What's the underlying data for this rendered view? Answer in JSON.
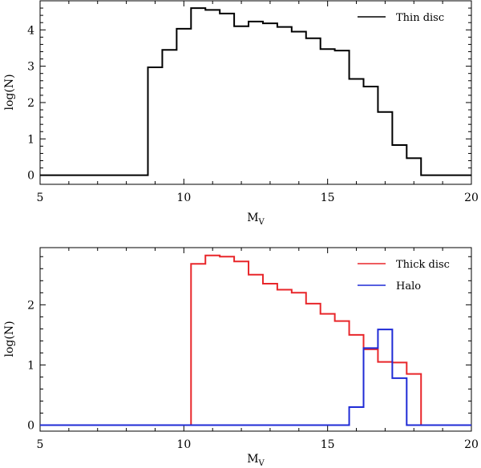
{
  "colors": {
    "black": "#000000",
    "red": "#e8262a",
    "blue": "#1f2bd6"
  },
  "chart_data": [
    {
      "type": "line",
      "step": "post",
      "xlabel": "M",
      "xlabel_sub": "V",
      "ylabel": "log(N)",
      "xlim": [
        5,
        20
      ],
      "ylim": [
        -0.25,
        4.8
      ],
      "xticks": [
        5,
        10,
        15,
        20
      ],
      "yticks": [
        0,
        1,
        2,
        3,
        4
      ],
      "legend_position": "top-right",
      "series": [
        {
          "name": "Thin disc",
          "color": "#000000",
          "x": [
            5.0,
            8.75,
            9.25,
            9.75,
            10.25,
            10.75,
            11.25,
            11.75,
            12.25,
            12.75,
            13.25,
            13.75,
            14.25,
            14.75,
            15.25,
            15.75,
            16.25,
            16.75,
            17.25,
            17.75,
            18.25,
            20.0
          ],
          "y": [
            0,
            2.97,
            3.45,
            4.03,
            4.6,
            4.55,
            4.45,
            4.1,
            4.23,
            4.18,
            4.08,
            3.95,
            3.77,
            3.47,
            3.43,
            2.65,
            2.44,
            1.74,
            0.83,
            0.47,
            0,
            0
          ]
        }
      ]
    },
    {
      "type": "line",
      "step": "post",
      "xlabel": "M",
      "xlabel_sub": "V",
      "ylabel": "log(N)",
      "xlim": [
        5,
        20
      ],
      "ylim": [
        -0.1,
        2.95
      ],
      "xticks": [
        5,
        10,
        15,
        20
      ],
      "yticks": [
        0,
        1,
        2
      ],
      "legend_position": "top-right",
      "series": [
        {
          "name": "Thick disc",
          "color": "#e8262a",
          "x": [
            5.0,
            10.25,
            10.75,
            11.25,
            11.75,
            12.25,
            12.75,
            13.25,
            13.75,
            14.25,
            14.75,
            15.25,
            15.75,
            16.25,
            16.75,
            17.25,
            17.75,
            18.25,
            20.0
          ],
          "y": [
            0,
            2.68,
            2.82,
            2.8,
            2.72,
            2.5,
            2.35,
            2.25,
            2.2,
            2.02,
            1.85,
            1.73,
            1.5,
            1.26,
            1.05,
            1.04,
            0.85,
            0,
            0
          ]
        },
        {
          "name": "Halo",
          "color": "#1f2bd6",
          "x": [
            5.0,
            15.75,
            16.25,
            16.75,
            17.25,
            17.75,
            20.0
          ],
          "y": [
            0,
            0.3,
            1.28,
            1.59,
            0.78,
            0,
            0
          ]
        }
      ]
    }
  ]
}
